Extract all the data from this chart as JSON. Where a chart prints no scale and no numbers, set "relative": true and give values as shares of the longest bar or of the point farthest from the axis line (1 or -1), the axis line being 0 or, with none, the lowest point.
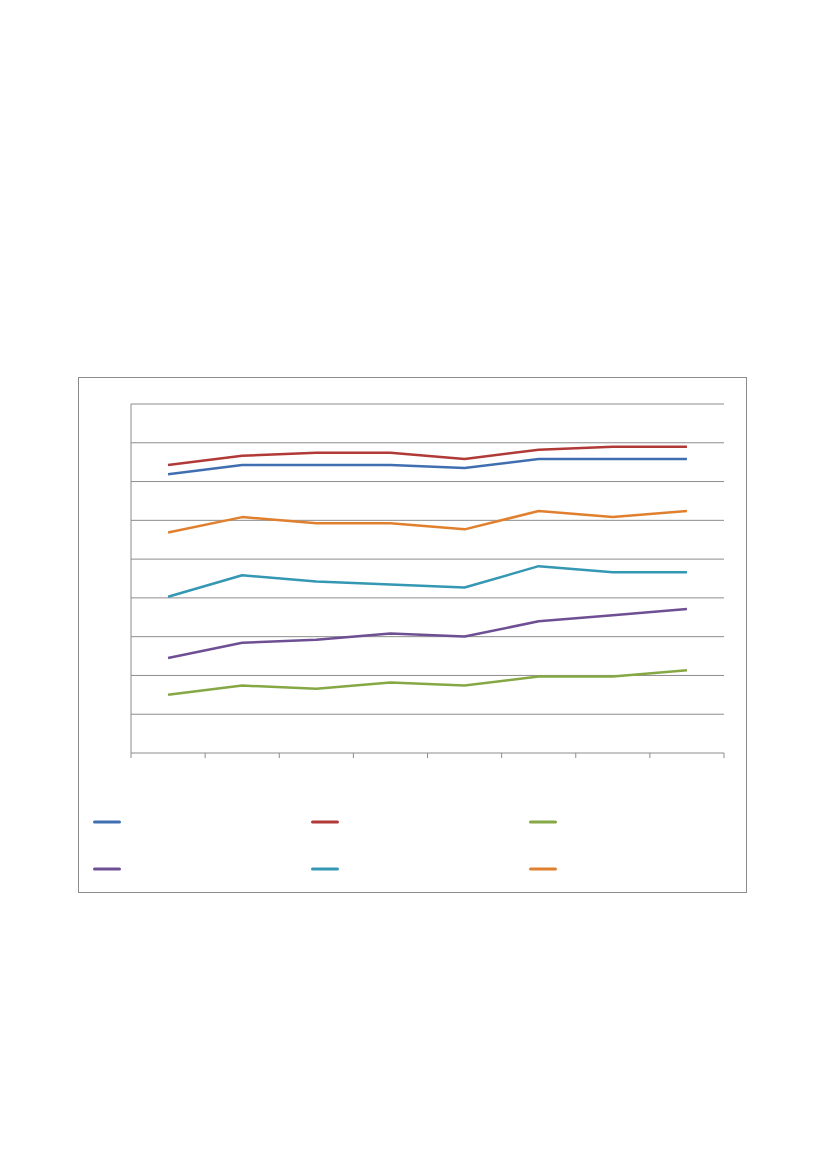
{
  "chart_data": {
    "type": "line",
    "relative": true,
    "categories": [
      null,
      null,
      null,
      null,
      null,
      null,
      null,
      null
    ],
    "grid": "y",
    "marker": "none",
    "line_style": "solid",
    "series": [
      {
        "color": "#3f6fb0",
        "values": [
          0.91,
          0.94,
          0.94,
          0.94,
          0.93,
          0.96,
          0.96,
          0.96
        ]
      },
      {
        "color": "#b03a37",
        "values": [
          0.94,
          0.97,
          0.98,
          0.98,
          0.96,
          0.99,
          1,
          1
        ]
      },
      {
        "color": "#86a844",
        "values": [
          0.19,
          0.22,
          0.21,
          0.23,
          0.22,
          0.25,
          0.25,
          0.27
        ]
      },
      {
        "color": "#6e4f93",
        "values": [
          0.31,
          0.36,
          0.37,
          0.39,
          0.38,
          0.43,
          0.45,
          0.47
        ]
      },
      {
        "color": "#3497b3",
        "values": [
          0.51,
          0.58,
          0.56,
          0.55,
          0.54,
          0.61,
          0.59,
          0.59
        ]
      },
      {
        "color": "#e0802f",
        "values": [
          0.72,
          0.77,
          0.75,
          0.75,
          0.73,
          0.79,
          0.77,
          0.79
        ]
      }
    ]
  }
}
